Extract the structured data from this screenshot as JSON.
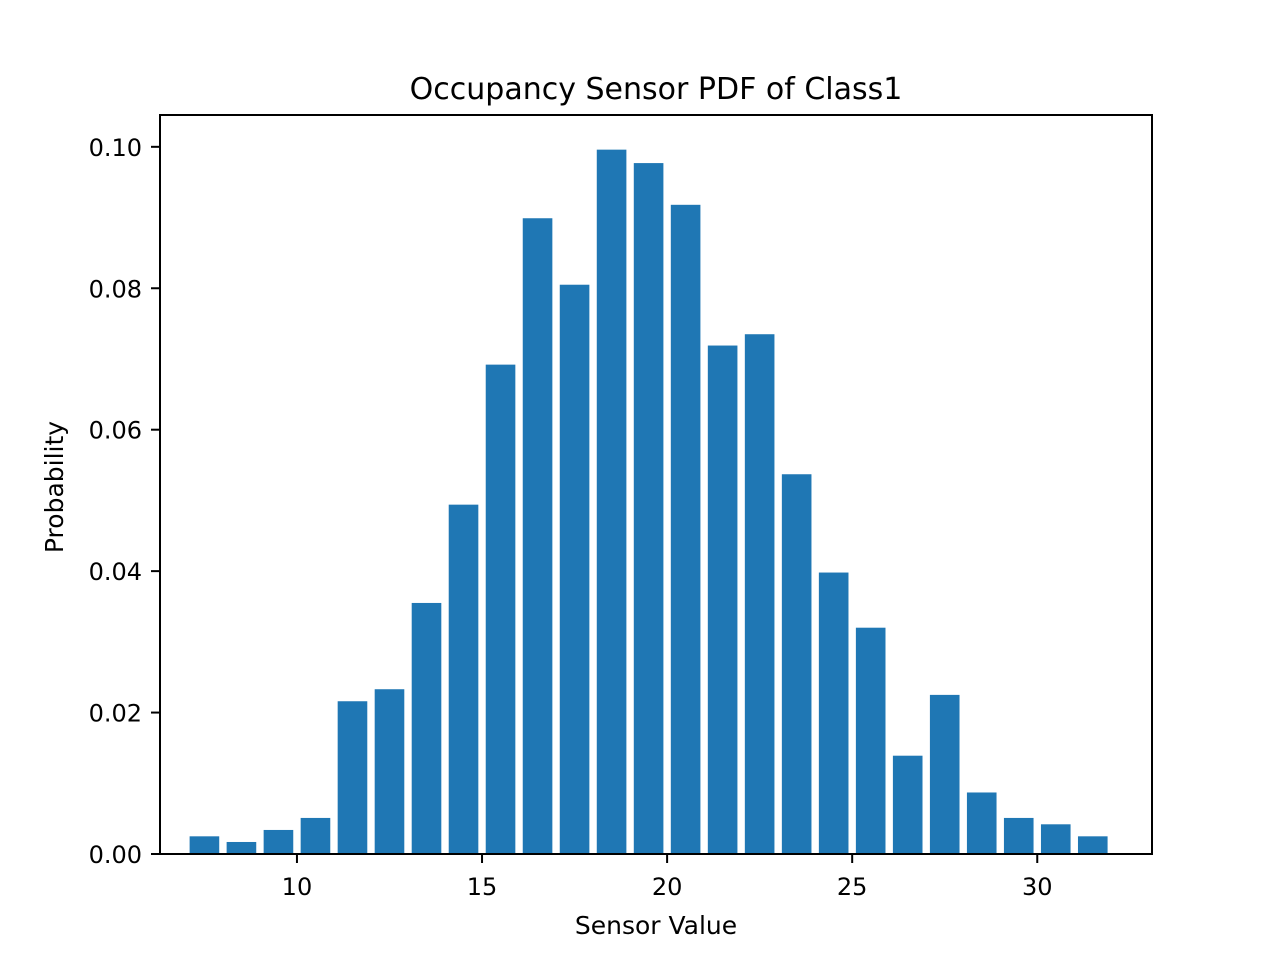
{
  "chart_data": {
    "type": "bar",
    "title": "Occupancy Sensor PDF of Class1",
    "xlabel": "Sensor Value",
    "ylabel": "Probability",
    "xlim": [
      6.3,
      33.1
    ],
    "ylim": [
      0,
      0.1045
    ],
    "x_ticks": [
      10,
      15,
      20,
      25,
      30
    ],
    "y_ticks": [
      0.0,
      0.02,
      0.04,
      0.06,
      0.08,
      0.1
    ],
    "y_tick_labels": [
      "0.00",
      "0.02",
      "0.04",
      "0.06",
      "0.08",
      "0.10"
    ],
    "bar_width": 0.8,
    "bar_color": "#1f77b4",
    "grid": false,
    "x": [
      7.5,
      8.5,
      9.5,
      10.5,
      11.5,
      12.5,
      13.5,
      14.5,
      15.5,
      16.5,
      17.5,
      18.5,
      19.5,
      20.5,
      21.5,
      22.5,
      23.5,
      24.5,
      25.5,
      26.5,
      27.5,
      28.5,
      29.5,
      30.5,
      31.5
    ],
    "values": [
      0.0025,
      0.0017,
      0.0034,
      0.0051,
      0.0216,
      0.0233,
      0.0355,
      0.0494,
      0.0692,
      0.0899,
      0.0805,
      0.0996,
      0.0977,
      0.0918,
      0.0719,
      0.0735,
      0.0537,
      0.0398,
      0.032,
      0.0139,
      0.0225,
      0.0087,
      0.0051,
      0.0042,
      0.0025
    ]
  }
}
